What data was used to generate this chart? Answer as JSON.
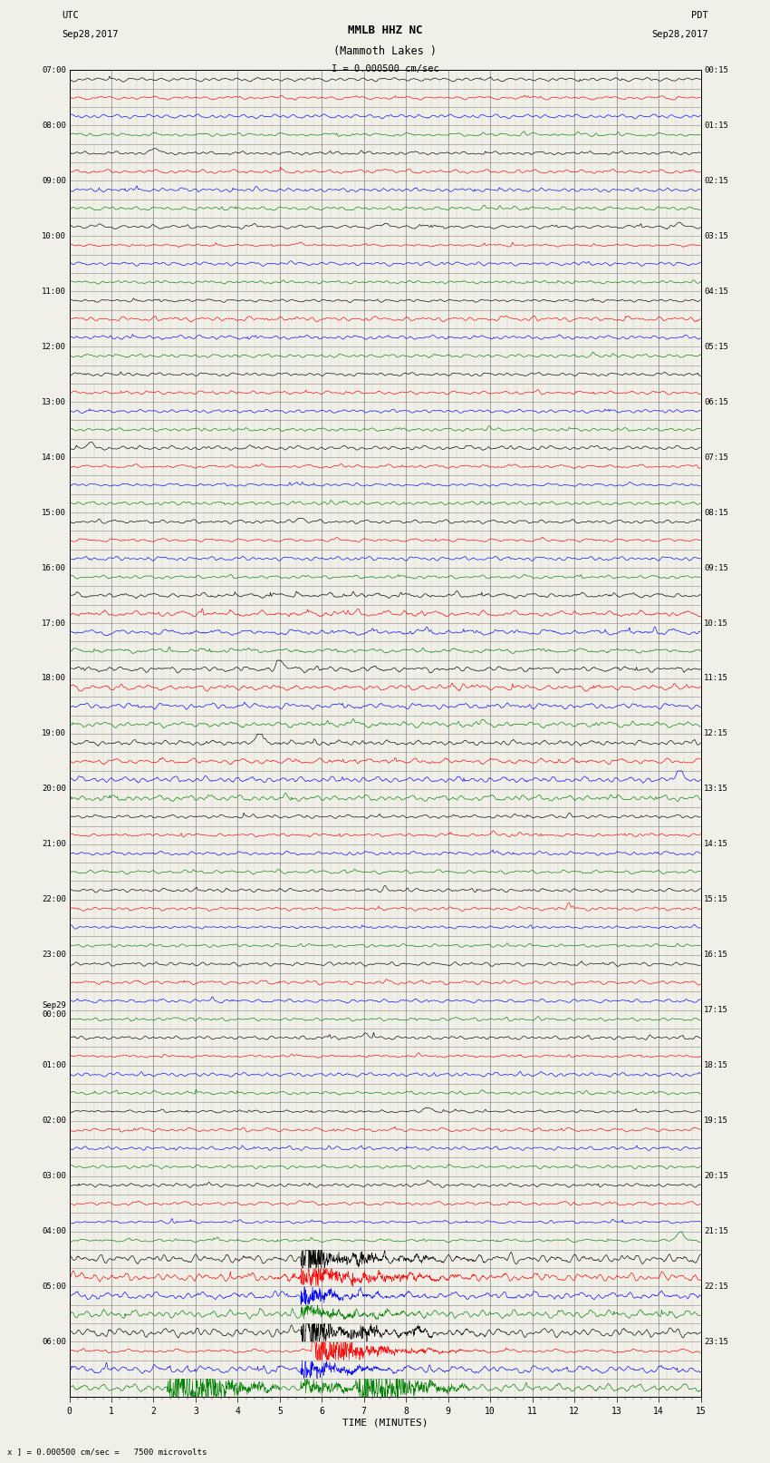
{
  "title_line1": "MMLB HHZ NC",
  "title_line2": "(Mammoth Lakes )",
  "title_line3": "I = 0.000500 cm/sec",
  "left_header_line1": "UTC",
  "left_header_line2": "Sep28,2017",
  "right_header_line1": "PDT",
  "right_header_line2": "Sep28,2017",
  "xlabel": "TIME (MINUTES)",
  "footer": "x ] = 0.000500 cm/sec =   7500 microvolts",
  "xmin": 0,
  "xmax": 15,
  "bg_color": "#f0f0e8",
  "grid_color": "#888888",
  "trace_colors": [
    "black",
    "red",
    "blue",
    "green"
  ],
  "n_rows": 72,
  "figwidth": 8.5,
  "figheight": 16.13,
  "utc_labels": [
    "07:00",
    "08:00",
    "09:00",
    "10:00",
    "11:00",
    "12:00",
    "13:00",
    "14:00",
    "15:00",
    "16:00",
    "17:00",
    "18:00",
    "19:00",
    "20:00",
    "21:00",
    "22:00",
    "23:00",
    "Sep29\n00:00",
    "01:00",
    "02:00",
    "03:00",
    "04:00",
    "05:00",
    "06:00"
  ],
  "pdt_labels": [
    "00:15",
    "01:15",
    "02:15",
    "03:15",
    "04:15",
    "05:15",
    "06:15",
    "07:15",
    "08:15",
    "09:15",
    "10:15",
    "11:15",
    "12:15",
    "13:15",
    "14:15",
    "15:15",
    "16:15",
    "17:15",
    "18:15",
    "19:15",
    "20:15",
    "21:15",
    "22:15",
    "23:15"
  ]
}
